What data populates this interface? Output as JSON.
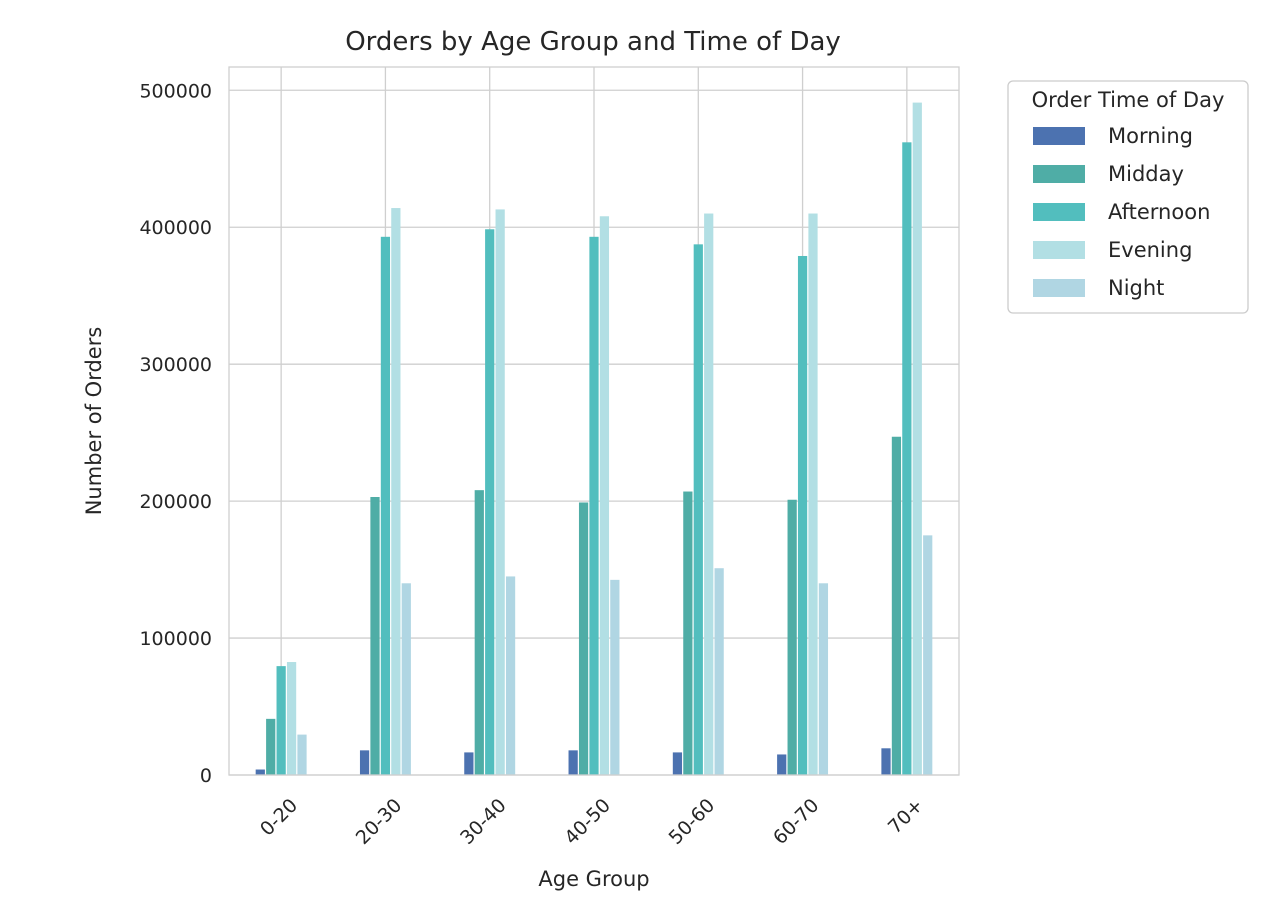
{
  "chart_data": {
    "type": "bar",
    "title": "Orders by Age Group and Time of Day",
    "xlabel": "Age Group",
    "ylabel": "Number of Orders",
    "ylim": [
      0,
      517000
    ],
    "yticks": [
      "0",
      "100000",
      "200000",
      "300000",
      "400000",
      "500000"
    ],
    "grid": true,
    "legend_title": "Order Time of Day",
    "legend_position": "outside-top-right",
    "categories": [
      "0-20",
      "20-30",
      "30-40",
      "40-50",
      "50-60",
      "60-70",
      "70+"
    ],
    "series": [
      {
        "name": "Morning",
        "color": "#4c72b0",
        "values": [
          4000,
          18000,
          16500,
          18000,
          16500,
          15000,
          19500
        ]
      },
      {
        "name": "Midday",
        "color": "#4fada6",
        "values": [
          41000,
          203000,
          208000,
          199000,
          207000,
          201000,
          247000
        ]
      },
      {
        "name": "Afternoon",
        "color": "#52bebe",
        "values": [
          79500,
          393000,
          398500,
          393000,
          387500,
          379000,
          462000
        ]
      },
      {
        "name": "Evening",
        "color": "#b2dfe4",
        "values": [
          82500,
          414000,
          413000,
          408000,
          410000,
          410000,
          491000
        ]
      },
      {
        "name": "Night",
        "color": "#b0d6e3",
        "values": [
          29500,
          140000,
          145000,
          142500,
          151000,
          140000,
          175000
        ]
      }
    ]
  }
}
